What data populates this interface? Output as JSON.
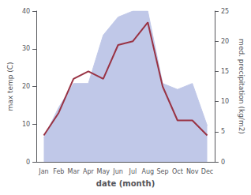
{
  "chart_data": {
    "type": "line",
    "categories": [
      "Jan",
      "Feb",
      "Mar",
      "Apr",
      "May",
      "Jun",
      "Jul",
      "Aug",
      "Sep",
      "Oct",
      "Nov",
      "Dec"
    ],
    "series": [
      {
        "type": "area",
        "color": "#c0c8e8",
        "axis": "y2",
        "values": [
          4,
          9,
          13,
          13,
          21,
          24,
          25,
          25,
          13,
          12,
          13,
          6
        ]
      },
      {
        "type": "line",
        "color": "#993344",
        "values": [
          7,
          13,
          22,
          24,
          22,
          31,
          32,
          37,
          20,
          11,
          11,
          7
        ]
      }
    ],
    "xlabel": "date (month)",
    "ylabel": "max temp (C)",
    "y2label": "med. precipitation (kg/m2)",
    "ylim": [
      0,
      40
    ],
    "yticks": [
      0,
      10,
      20,
      30,
      40
    ],
    "y2lim": [
      0,
      25
    ],
    "y2ticks": [
      0,
      5,
      10,
      15,
      20,
      25
    ],
    "grid": false
  }
}
